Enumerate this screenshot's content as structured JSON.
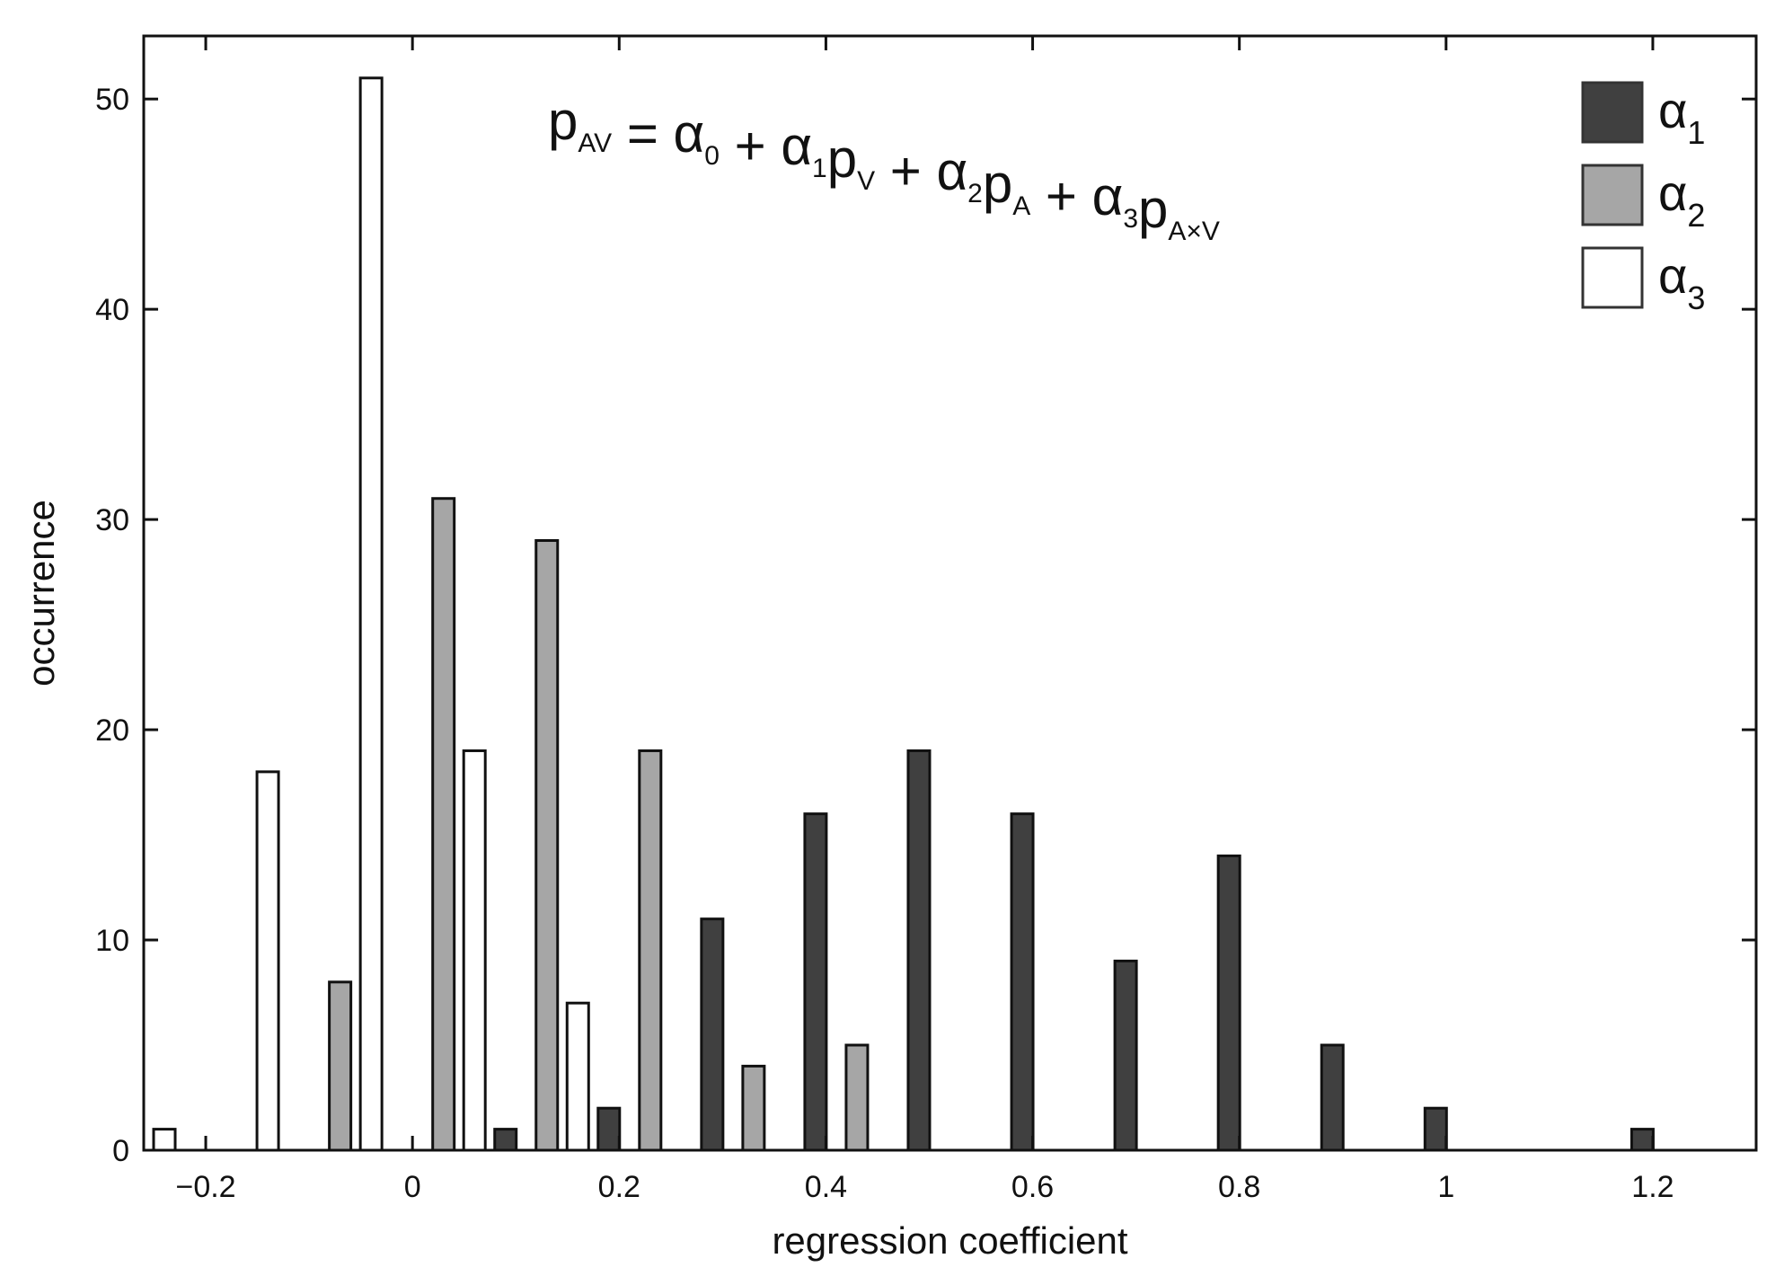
{
  "chart_data": {
    "type": "bar",
    "title": "",
    "xlabel": "regression coefficient",
    "ylabel": "occurrence",
    "xlim": [
      -0.26,
      1.3
    ],
    "ylim": [
      0,
      53
    ],
    "xticks": [
      -0.2,
      0,
      0.2,
      0.4,
      0.6,
      0.8,
      1,
      1.2
    ],
    "xtick_labels": [
      "−0.2",
      "0",
      "0.2",
      "0.4",
      "0.6",
      "0.8",
      "1",
      "1.2"
    ],
    "yticks": [
      0,
      10,
      20,
      30,
      40,
      50
    ],
    "ytick_labels": [
      "0",
      "10",
      "20",
      "30",
      "40",
      "50"
    ],
    "grid": false,
    "legend_position": "top-right",
    "annotation": {
      "parts": [
        {
          "t": "p",
          "sub": "AV"
        },
        {
          "t": " = α",
          "sub": "0"
        },
        {
          "t": " + α",
          "sub": "1"
        },
        {
          "t": "p",
          "sub": "V"
        },
        {
          "t": " + α",
          "sub": "2"
        },
        {
          "t": "p",
          "sub": "A"
        },
        {
          "t": " + α",
          "sub": "3"
        },
        {
          "t": "p",
          "sub": "A×V"
        }
      ]
    },
    "series": [
      {
        "name_main": "α",
        "name_sub": "1",
        "color": "#404040",
        "offset": -0.01,
        "points": [
          {
            "x": 0.1,
            "y": 1
          },
          {
            "x": 0.2,
            "y": 2
          },
          {
            "x": 0.3,
            "y": 11
          },
          {
            "x": 0.4,
            "y": 16
          },
          {
            "x": 0.5,
            "y": 19
          },
          {
            "x": 0.6,
            "y": 16
          },
          {
            "x": 0.7,
            "y": 9
          },
          {
            "x": 0.8,
            "y": 14
          },
          {
            "x": 0.9,
            "y": 5
          },
          {
            "x": 1.0,
            "y": 2
          },
          {
            "x": 1.2,
            "y": 1
          }
        ]
      },
      {
        "name_main": "α",
        "name_sub": "2",
        "color": "#a6a6a6",
        "offset": 0.01,
        "points": [
          {
            "x": -0.08,
            "y": 8
          },
          {
            "x": 0.02,
            "y": 31
          },
          {
            "x": 0.12,
            "y": 29
          },
          {
            "x": 0.22,
            "y": 19
          },
          {
            "x": 0.32,
            "y": 4
          },
          {
            "x": 0.42,
            "y": 5
          }
        ]
      },
      {
        "name_main": "α",
        "name_sub": "3",
        "color": "#ffffff",
        "offset": 0,
        "points": [
          {
            "x": -0.24,
            "y": 1
          },
          {
            "x": -0.14,
            "y": 18
          },
          {
            "x": -0.04,
            "y": 51
          },
          {
            "x": 0.06,
            "y": 19
          },
          {
            "x": 0.16,
            "y": 7
          }
        ]
      }
    ]
  }
}
